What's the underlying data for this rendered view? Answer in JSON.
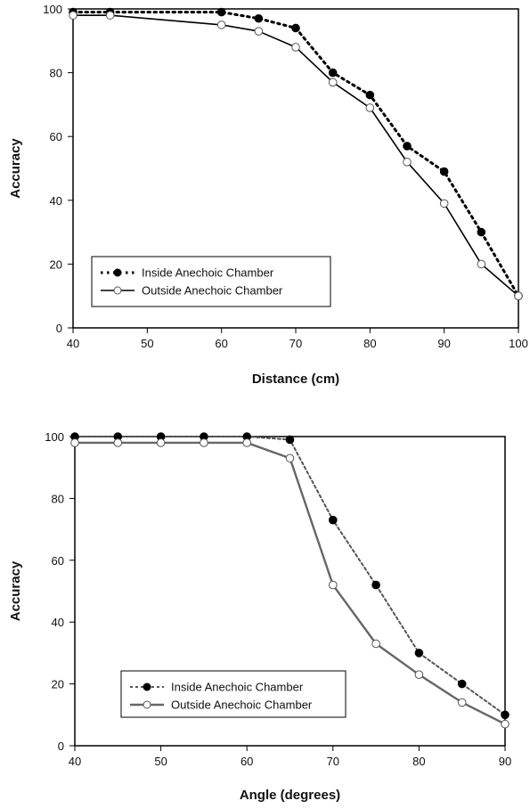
{
  "chart_data": [
    {
      "type": "line",
      "xlabel": "Distance (cm)",
      "ylabel": "Accuracy",
      "xlim": [
        40,
        100
      ],
      "ylim": [
        0,
        100
      ],
      "xticks": [
        40,
        50,
        60,
        70,
        80,
        90,
        100
      ],
      "yticks": [
        0,
        20,
        40,
        60,
        80,
        100
      ],
      "grid": false,
      "legend_position": "bottom-left",
      "series": [
        {
          "name": "Inside Anechoic Chamber",
          "style": "dotted",
          "marker": "filled-circle",
          "color": "#000000",
          "x": [
            40,
            45,
            60,
            65,
            70,
            75,
            80,
            85,
            90,
            95,
            100
          ],
          "y": [
            99,
            99,
            99,
            97,
            94,
            80,
            73,
            57,
            49,
            30,
            10
          ]
        },
        {
          "name": "Outside Anechoic Chamber",
          "style": "solid",
          "marker": "open-circle",
          "color": "#000000",
          "x": [
            40,
            45,
            60,
            65,
            70,
            75,
            80,
            85,
            90,
            95,
            100
          ],
          "y": [
            98,
            98,
            95,
            93,
            88,
            77,
            69,
            52,
            39,
            20,
            10
          ]
        }
      ]
    },
    {
      "type": "line",
      "xlabel": "Angle (degrees)",
      "ylabel": "Accuracy",
      "xlim": [
        40,
        90
      ],
      "ylim": [
        0,
        100
      ],
      "xticks": [
        40,
        50,
        60,
        70,
        80,
        90
      ],
      "yticks": [
        0,
        20,
        40,
        60,
        80,
        100
      ],
      "grid": false,
      "legend_position": "bottom-left",
      "series": [
        {
          "name": "Inside Anechoic Chamber",
          "style": "dotted",
          "marker": "filled-circle",
          "color": "#555555",
          "x": [
            40,
            45,
            50,
            55,
            60,
            65,
            70,
            75,
            80,
            85,
            90
          ],
          "y": [
            100,
            100,
            100,
            100,
            100,
            99,
            73,
            52,
            30,
            20,
            10
          ]
        },
        {
          "name": "Outside Anechoic Chamber",
          "style": "solid",
          "marker": "open-circle",
          "color": "#666666",
          "x": [
            40,
            45,
            50,
            55,
            60,
            65,
            70,
            75,
            80,
            85,
            90
          ],
          "y": [
            98,
            98,
            98,
            98,
            98,
            93,
            52,
            33,
            23,
            14,
            7
          ]
        }
      ]
    }
  ]
}
